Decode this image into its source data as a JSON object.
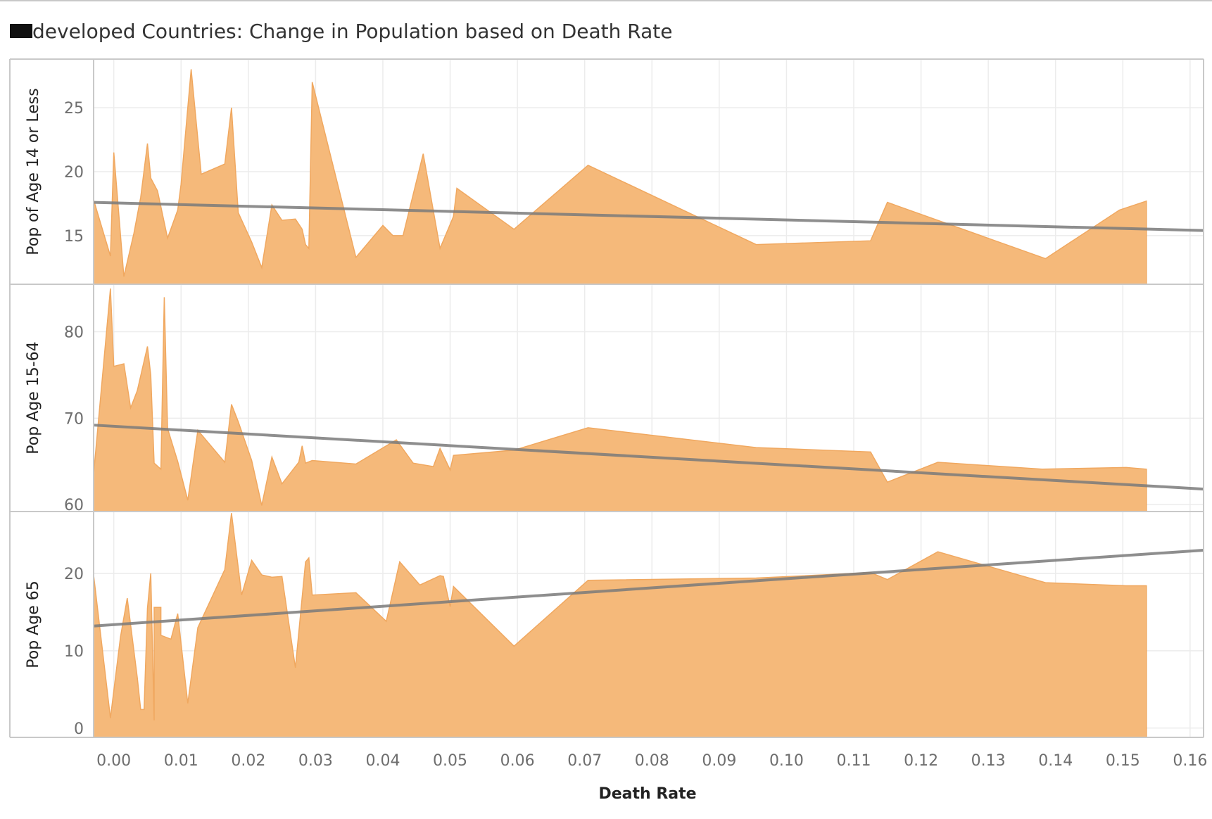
{
  "title": "developed Countries: Change in Population based on Death Rate",
  "chart_data": {
    "type": "area",
    "title": "developed Countries: Change in Population based on Death Rate",
    "xlabel": "Death Rate",
    "xlim": [
      -0.003,
      0.162
    ],
    "x_ticks": [
      "0.00",
      "0.01",
      "0.02",
      "0.03",
      "0.04",
      "0.05",
      "0.06",
      "0.07",
      "0.08",
      "0.09",
      "0.10",
      "0.11",
      "0.12",
      "0.13",
      "0.14",
      "0.15",
      "0.16"
    ],
    "trend_lines": true,
    "grid": true,
    "colors": {
      "area": "#f5b97a",
      "area_edge": "#f0a860",
      "trend": "#7a7a7a",
      "frame": "#c9c9c9",
      "grid": "#ececec"
    },
    "panels": [
      {
        "ylabel": "Pop of Age 14 or Less",
        "ylim": [
          11.2,
          28.8
        ],
        "y_ticks": [
          15,
          20,
          25
        ],
        "x": [
          -0.003,
          -0.0005,
          0.0,
          0.0015,
          0.003,
          0.004,
          0.005,
          0.0055,
          0.0065,
          0.008,
          0.0095,
          0.01,
          0.0115,
          0.013,
          0.0165,
          0.0175,
          0.0185,
          0.0205,
          0.022,
          0.0235,
          0.025,
          0.027,
          0.028,
          0.0285,
          0.029,
          0.0295,
          0.036,
          0.04,
          0.0415,
          0.043,
          0.046,
          0.0485,
          0.0505,
          0.051,
          0.0595,
          0.0705,
          0.0955,
          0.1125,
          0.115,
          0.1385,
          0.1495,
          0.1535
        ],
        "y": [
          17.8,
          13.4,
          21.5,
          11.8,
          15.2,
          18.0,
          22.2,
          19.5,
          18.5,
          14.8,
          17.0,
          19.0,
          28.0,
          19.8,
          20.6,
          25.0,
          16.8,
          14.5,
          12.5,
          17.4,
          16.2,
          16.3,
          15.5,
          14.3,
          14.0,
          27.0,
          13.3,
          15.8,
          15.0,
          15.0,
          21.4,
          14.0,
          16.5,
          18.7,
          15.5,
          20.5,
          14.3,
          14.6,
          17.6,
          13.2,
          17.0,
          17.7
        ],
        "trend": {
          "x0": -0.003,
          "y0": 17.6,
          "x1": 0.162,
          "y1": 15.4
        }
      },
      {
        "ylabel": "Pop Age 15-64",
        "ylim": [
          59.2,
          85.5
        ],
        "y_ticks": [
          60,
          70,
          80
        ],
        "x": [
          -0.003,
          -0.0005,
          0.0,
          0.0015,
          0.0025,
          0.0035,
          0.005,
          0.0055,
          0.006,
          0.007,
          0.0075,
          0.008,
          0.0095,
          0.011,
          0.0125,
          0.0165,
          0.0175,
          0.0185,
          0.0205,
          0.022,
          0.0235,
          0.025,
          0.027,
          0.0275,
          0.028,
          0.0285,
          0.0295,
          0.036,
          0.042,
          0.0445,
          0.0475,
          0.0485,
          0.05,
          0.0505,
          0.0595,
          0.0705,
          0.0955,
          0.1125,
          0.115,
          0.1225,
          0.138,
          0.1505,
          0.1535
        ],
        "y": [
          63.5,
          85.0,
          76.0,
          76.3,
          71.2,
          73.2,
          78.3,
          75.0,
          64.8,
          64.1,
          84.0,
          68.8,
          65.0,
          60.5,
          68.6,
          64.9,
          71.6,
          69.6,
          65.1,
          59.9,
          65.5,
          62.4,
          64.4,
          64.9,
          66.8,
          64.8,
          65.1,
          64.7,
          67.5,
          64.8,
          64.4,
          66.5,
          64.0,
          65.7,
          66.3,
          68.9,
          66.6,
          66.1,
          62.6,
          64.9,
          64.1,
          64.3,
          64.1
        ],
        "trend": {
          "x0": -0.003,
          "y0": 69.2,
          "x1": 0.162,
          "y1": 61.8
        }
      },
      {
        "ylabel": "Pop Age 65",
        "ylim": [
          -1.2,
          28.0
        ],
        "y_ticks": [
          0,
          10,
          20
        ],
        "x": [
          -0.003,
          -0.0005,
          0.001,
          0.002,
          0.0035,
          0.004,
          0.0045,
          0.005,
          0.0055,
          0.006,
          0.006,
          0.007,
          0.007,
          0.0085,
          0.0095,
          0.011,
          0.0125,
          0.0165,
          0.0175,
          0.019,
          0.0205,
          0.022,
          0.0235,
          0.025,
          0.027,
          0.0285,
          0.029,
          0.0295,
          0.036,
          0.0405,
          0.0425,
          0.0455,
          0.0485,
          0.049,
          0.05,
          0.0505,
          0.0595,
          0.0705,
          0.0955,
          0.1125,
          0.115,
          0.1225,
          0.1385,
          0.1505,
          0.1535
        ],
        "y": [
          19.8,
          1.3,
          11.8,
          16.8,
          6.5,
          2.4,
          2.4,
          15.5,
          20.0,
          1.0,
          15.6,
          15.6,
          12.0,
          11.5,
          14.8,
          3.2,
          13.0,
          20.5,
          27.8,
          17.2,
          21.7,
          19.8,
          19.5,
          19.6,
          7.8,
          21.5,
          22.0,
          17.2,
          17.5,
          13.8,
          21.5,
          18.5,
          19.7,
          19.6,
          15.7,
          18.3,
          10.6,
          19.1,
          19.4,
          20.1,
          19.2,
          22.8,
          18.8,
          18.4,
          18.4
        ],
        "trend": {
          "x0": -0.003,
          "y0": 13.2,
          "x1": 0.162,
          "y1": 23.0
        }
      }
    ]
  }
}
